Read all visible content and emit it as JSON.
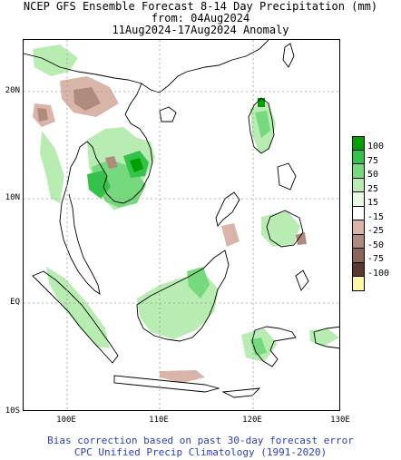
{
  "title": {
    "line1": "NCEP GFS Ensemble Forecast 8-14 Day Precipitation (mm)",
    "line2": "from: 04Aug2024",
    "line3": "11Aug2024-17Aug2024 Anomaly"
  },
  "axes": {
    "lat_labels": [
      "20N",
      "10N",
      "EQ",
      "10S"
    ],
    "lon_labels": [
      "100E",
      "110E",
      "120E",
      "130E"
    ]
  },
  "legend": {
    "items": [
      {
        "label": "100",
        "color": "#00a000"
      },
      {
        "label": "75",
        "color": "#33c24a"
      },
      {
        "label": "50",
        "color": "#77d97d"
      },
      {
        "label": "25",
        "color": "#b8ecb3"
      },
      {
        "label": "15",
        "color": "#e6f8e2"
      },
      {
        "label": "-15",
        "color": "#ffffff"
      },
      {
        "label": "-25",
        "color": "#d9b4a9"
      },
      {
        "label": "-50",
        "color": "#b08a7d"
      },
      {
        "label": "-75",
        "color": "#8a6558"
      },
      {
        "label": "-100",
        "color": "#5a3a30"
      },
      {
        "label": "",
        "color": "#fff6a6"
      }
    ]
  },
  "footer": {
    "line1": "Bias correction based on past 30-day forecast error",
    "line2": "CPC Unified Precip Climatology (1991-2020)"
  },
  "colors": {
    "footer_text": "#2a3cc8",
    "grid": "#9a9a9a"
  }
}
